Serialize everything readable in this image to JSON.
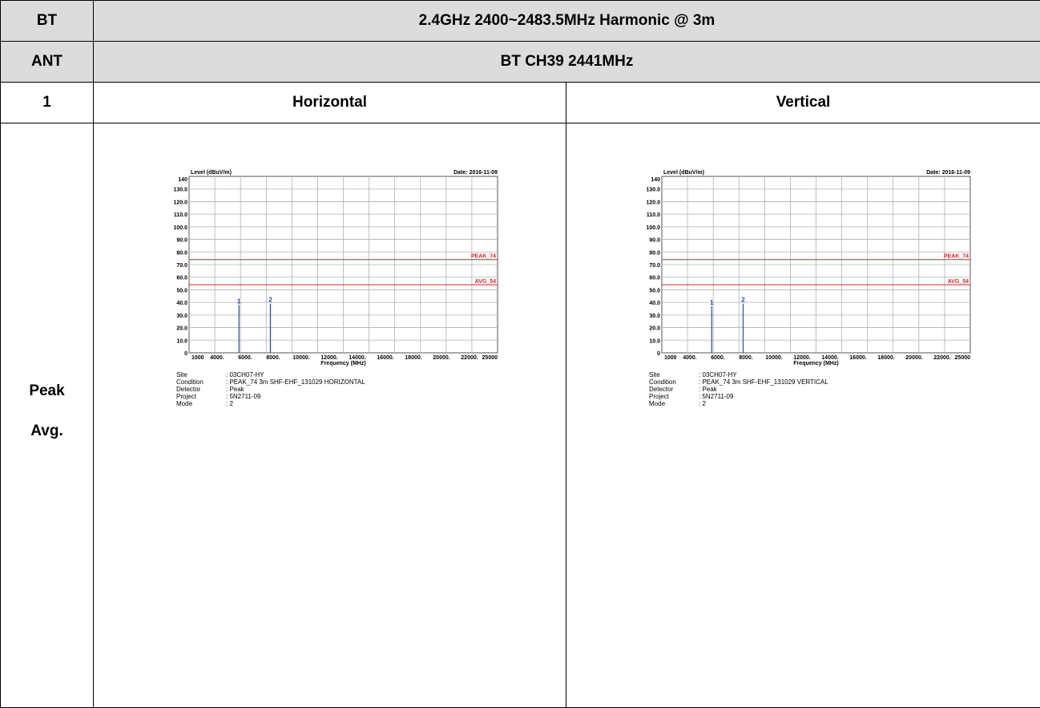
{
  "table": {
    "row1": {
      "left": "BT",
      "right": "2.4GHz 2400~2483.5MHz Harmonic @ 3m"
    },
    "row2": {
      "left": "ANT",
      "right": "BT CH39 2441MHz"
    },
    "row3": {
      "left": "1",
      "col_h": "Horizontal",
      "col_v": "Vertical"
    },
    "row4": {
      "mode_line1": "Peak",
      "mode_line2": "Avg."
    }
  },
  "chart_data": [
    {
      "type": "bar",
      "title": "",
      "date_label": "Date: 2016-11-09",
      "ylabel": "Level (dBuV/m)",
      "xlabel": "Frequency (MHz)",
      "xlim": [
        1000,
        25000
      ],
      "ylim": [
        0,
        140
      ],
      "x_tick_labels": [
        "1000",
        "4000.",
        "6000.",
        "8000.",
        "10000.",
        "12000.",
        "14000.",
        "16000.",
        "18000.",
        "20000.",
        "22000.",
        "25000"
      ],
      "y_tick_labels": [
        "0",
        "10.0",
        "20.0",
        "30.0",
        "40.0",
        "50.0",
        "60.0",
        "70.0",
        "80.0",
        "90.0",
        "100.0",
        "110.0",
        "120.0",
        "130.0",
        "140"
      ],
      "limit_lines": [
        {
          "name": "PEAK_74",
          "value": 74,
          "color": "#e02020"
        },
        {
          "name": "AVG_54",
          "value": 54,
          "color": "#e02020"
        }
      ],
      "markers": [
        {
          "label": "1",
          "x": 4882,
          "y": 38
        },
        {
          "label": "2",
          "x": 7323,
          "y": 39
        }
      ],
      "marker_color": "#1a4fb0",
      "grid": true,
      "info": [
        {
          "key": "Site",
          "value": ": 03CH07-HY"
        },
        {
          "key": "Condition",
          "value": ": PEAK_74 3m SHF-EHF_131029 HORIZONTAL"
        },
        {
          "key": "Detector",
          "value": ": Peak"
        },
        {
          "key": "Project",
          "value": ": 5N2711-09"
        },
        {
          "key": "Mode",
          "value": ": 2"
        }
      ]
    },
    {
      "type": "bar",
      "title": "",
      "date_label": "Date: 2016-11-09",
      "ylabel": "Level (dBuV/m)",
      "xlabel": "Frequency (MHz)",
      "xlim": [
        1000,
        25000
      ],
      "ylim": [
        0,
        140
      ],
      "x_tick_labels": [
        "1000",
        "4000.",
        "6000.",
        "8000.",
        "10000.",
        "12000.",
        "14000.",
        "16000.",
        "18000.",
        "20000.",
        "22000.",
        "25000"
      ],
      "y_tick_labels": [
        "0",
        "10.0",
        "20.0",
        "30.0",
        "40.0",
        "50.0",
        "60.0",
        "70.0",
        "80.0",
        "90.0",
        "100.0",
        "110.0",
        "120.0",
        "130.0",
        "140"
      ],
      "limit_lines": [
        {
          "name": "PEAK_74",
          "value": 74,
          "color": "#e02020"
        },
        {
          "name": "AVG_54",
          "value": 54,
          "color": "#e02020"
        }
      ],
      "markers": [
        {
          "label": "1",
          "x": 4882,
          "y": 37
        },
        {
          "label": "2",
          "x": 7323,
          "y": 39
        }
      ],
      "marker_color": "#1a4fb0",
      "grid": true,
      "info": [
        {
          "key": "Site",
          "value": ": 03CH07-HY"
        },
        {
          "key": "Condition",
          "value": ": PEAK_74 3m SHF-EHF_131029 VERTICAL"
        },
        {
          "key": "Detector",
          "value": ": Peak"
        },
        {
          "key": "Project",
          "value": ": 5N2711-09"
        },
        {
          "key": "Mode",
          "value": ": 2"
        }
      ]
    }
  ]
}
